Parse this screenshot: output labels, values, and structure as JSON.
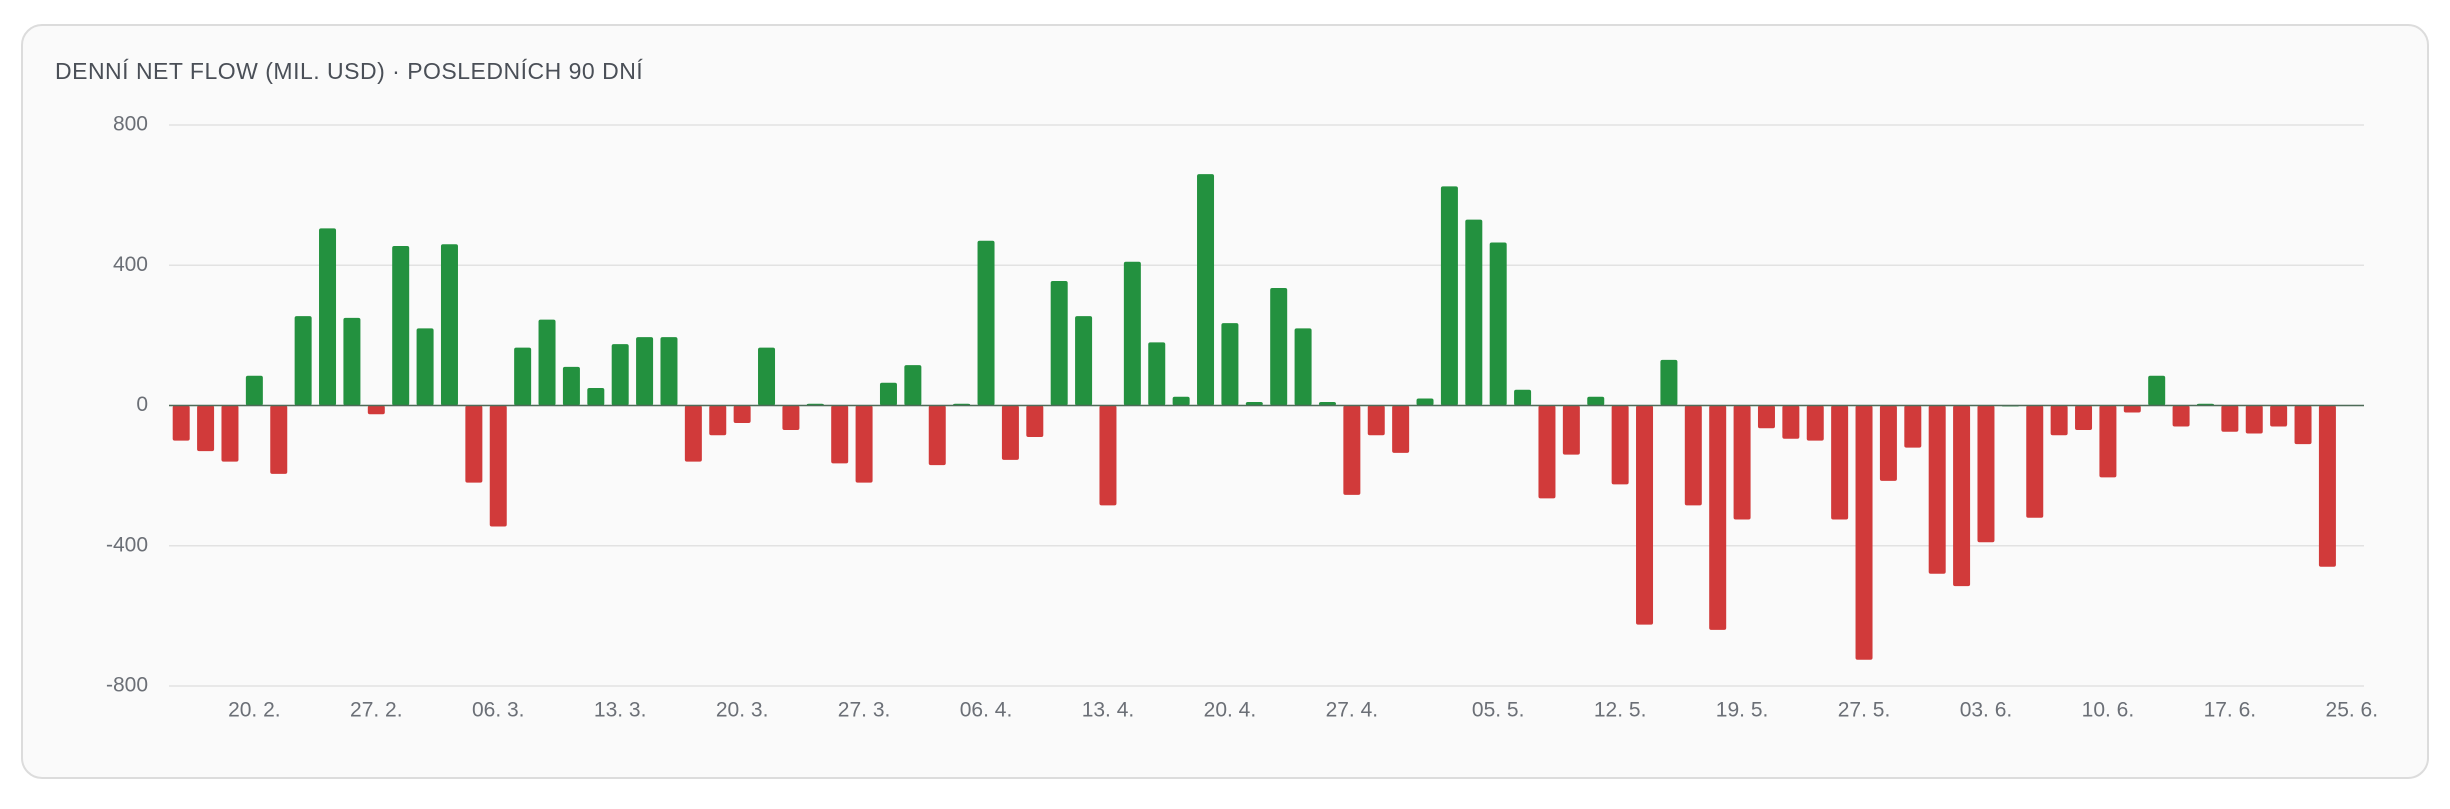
{
  "chart_data": {
    "type": "bar",
    "title": "DENNÍ NET FLOW (MIL. USD) · POSLEDNÍCH 90 DNÍ",
    "categories": [
      null,
      null,
      null,
      "20. 2.",
      null,
      null,
      null,
      null,
      "27. 2.",
      null,
      null,
      null,
      null,
      "06. 3.",
      null,
      null,
      null,
      null,
      "13. 3.",
      null,
      null,
      null,
      null,
      "20. 3.",
      null,
      null,
      null,
      null,
      "27. 3.",
      null,
      null,
      null,
      null,
      "06. 4.",
      null,
      null,
      null,
      null,
      "13. 4.",
      null,
      null,
      null,
      null,
      "20. 4.",
      null,
      null,
      null,
      null,
      "27. 4.",
      null,
      null,
      null,
      null,
      null,
      "05. 5.",
      null,
      null,
      null,
      null,
      "12. 5.",
      null,
      null,
      null,
      null,
      "19. 5.",
      null,
      null,
      null,
      null,
      "27. 5.",
      null,
      null,
      null,
      null,
      "03. 6.",
      null,
      null,
      null,
      null,
      "10. 6.",
      null,
      null,
      null,
      null,
      "17. 6.",
      null,
      null,
      null,
      null,
      "25. 6."
    ],
    "values": [
      -100,
      -130,
      -160,
      85,
      -195,
      255,
      505,
      250,
      -25,
      455,
      220,
      460,
      -220,
      -345,
      165,
      245,
      110,
      50,
      175,
      195,
      195,
      -160,
      -85,
      -50,
      165,
      -70,
      5,
      -165,
      -220,
      65,
      115,
      -170,
      5,
      470,
      -155,
      -90,
      355,
      255,
      -285,
      410,
      180,
      25,
      660,
      235,
      10,
      335,
      220,
      10,
      -255,
      -85,
      -135,
      20,
      625,
      530,
      465,
      45,
      -265,
      -140,
      25,
      -225,
      -625,
      130,
      -285,
      -640,
      -325,
      -65,
      -95,
      -100,
      -325,
      -725,
      -215,
      -120,
      -480,
      -515,
      -390,
      0,
      -320,
      -85,
      -70,
      -205,
      -20,
      85,
      -60,
      5,
      -75,
      -80,
      -60,
      -110,
      -460,
      null
    ],
    "positive_color": "#23913f",
    "negative_color": "#d13a3a",
    "ylim": [
      -800,
      800
    ],
    "yticks": [
      -800,
      -400,
      0,
      400,
      800
    ],
    "grid": true
  }
}
